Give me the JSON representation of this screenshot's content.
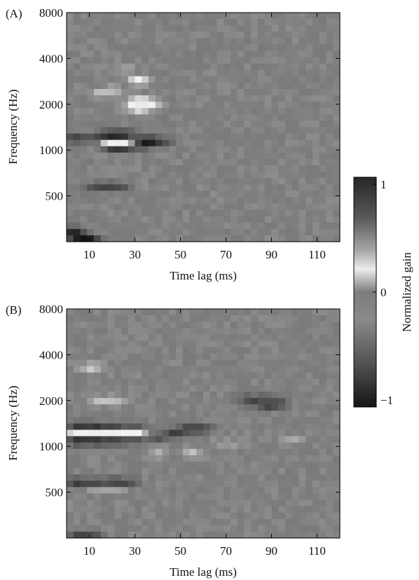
{
  "chart_data": [
    {
      "type": "heatmap",
      "panel_label": "(A)",
      "xlabel": "Time lag (ms)",
      "ylabel": "Frequency (Hz)",
      "xlim": [
        0,
        120
      ],
      "x_ticks": [
        10,
        30,
        50,
        70,
        90,
        110
      ],
      "y_scale": "log",
      "ylim": [
        250,
        8000
      ],
      "y_ticks": [
        500,
        1000,
        2000,
        4000,
        8000
      ],
      "grid": false,
      "values": [
        {
          "t": 3,
          "f": 280,
          "v": 0.7
        },
        {
          "t": 6,
          "f": 265,
          "v": 0.55
        },
        {
          "t": 3,
          "f": 300,
          "v": 0.4
        },
        {
          "t": 9,
          "f": 260,
          "v": 0.45
        },
        {
          "t": 12,
          "f": 255,
          "v": 0.35
        },
        {
          "t": 4,
          "f": 1180,
          "v": 0.75
        },
        {
          "t": 13,
          "f": 1180,
          "v": 0.5
        },
        {
          "t": 18,
          "f": 1250,
          "v": 0.8
        },
        {
          "t": 22,
          "f": 1250,
          "v": 0.9
        },
        {
          "t": 26,
          "f": 1250,
          "v": 0.85
        },
        {
          "t": 19,
          "f": 1150,
          "v": -0.95
        },
        {
          "t": 23,
          "f": 1150,
          "v": -1.0
        },
        {
          "t": 27,
          "f": 1150,
          "v": -0.8
        },
        {
          "t": 20,
          "f": 1050,
          "v": 0.7
        },
        {
          "t": 25,
          "f": 1050,
          "v": 0.75
        },
        {
          "t": 33,
          "f": 1150,
          "v": 0.85
        },
        {
          "t": 38,
          "f": 1150,
          "v": 0.65
        },
        {
          "t": 43,
          "f": 1120,
          "v": 0.35
        },
        {
          "t": 33,
          "f": 1050,
          "v": 0.4
        },
        {
          "t": 32,
          "f": 2050,
          "v": -0.9
        },
        {
          "t": 32,
          "f": 1900,
          "v": -0.75
        },
        {
          "t": 36,
          "f": 2000,
          "v": -0.5
        },
        {
          "t": 32,
          "f": 2850,
          "v": -0.6
        },
        {
          "t": 11,
          "f": 560,
          "v": 0.3
        },
        {
          "t": 16,
          "f": 580,
          "v": 0.4
        },
        {
          "t": 21,
          "f": 580,
          "v": 0.35
        },
        {
          "t": 25,
          "f": 560,
          "v": 0.25
        },
        {
          "t": 20,
          "f": 2500,
          "v": -0.3
        },
        {
          "t": 14,
          "f": 2350,
          "v": -0.25
        },
        {
          "t": 25,
          "f": 3400,
          "v": -0.2
        }
      ]
    },
    {
      "type": "heatmap",
      "panel_label": "(B)",
      "xlabel": "Time lag (ms)",
      "ylabel": "Frequency (Hz)",
      "xlim": [
        0,
        120
      ],
      "x_ticks": [
        10,
        30,
        50,
        70,
        90,
        110
      ],
      "y_scale": "log",
      "ylim": [
        250,
        8000
      ],
      "y_ticks": [
        500,
        1000,
        2000,
        4000,
        8000
      ],
      "grid": false,
      "values": [
        {
          "t": 5,
          "f": 1350,
          "v": 0.85
        },
        {
          "t": 13,
          "f": 1350,
          "v": 0.9
        },
        {
          "t": 21,
          "f": 1350,
          "v": 0.8
        },
        {
          "t": 30,
          "f": 1350,
          "v": 0.6
        },
        {
          "t": 5,
          "f": 1250,
          "v": -0.9
        },
        {
          "t": 13,
          "f": 1250,
          "v": -1.0
        },
        {
          "t": 21,
          "f": 1250,
          "v": -1.0
        },
        {
          "t": 30,
          "f": 1250,
          "v": -0.75
        },
        {
          "t": 5,
          "f": 1080,
          "v": 0.85
        },
        {
          "t": 13,
          "f": 1080,
          "v": 0.8
        },
        {
          "t": 21,
          "f": 1080,
          "v": 0.75
        },
        {
          "t": 30,
          "f": 1100,
          "v": 0.5
        },
        {
          "t": 40,
          "f": 1150,
          "v": 0.55
        },
        {
          "t": 48,
          "f": 1230,
          "v": 0.6
        },
        {
          "t": 54,
          "f": 1300,
          "v": 0.65
        },
        {
          "t": 60,
          "f": 1300,
          "v": 0.5
        },
        {
          "t": 5,
          "f": 580,
          "v": 0.7
        },
        {
          "t": 13,
          "f": 580,
          "v": 0.75
        },
        {
          "t": 21,
          "f": 580,
          "v": 0.7
        },
        {
          "t": 28,
          "f": 580,
          "v": 0.5
        },
        {
          "t": 13,
          "f": 540,
          "v": -0.35
        },
        {
          "t": 21,
          "f": 540,
          "v": -0.3
        },
        {
          "t": 82,
          "f": 1950,
          "v": 0.45
        },
        {
          "t": 88,
          "f": 1850,
          "v": 0.55
        },
        {
          "t": 94,
          "f": 1900,
          "v": 0.45
        },
        {
          "t": 88,
          "f": 2100,
          "v": 0.35
        },
        {
          "t": 78,
          "f": 2100,
          "v": 0.25
        },
        {
          "t": 11,
          "f": 3300,
          "v": -0.45
        },
        {
          "t": 15,
          "f": 2000,
          "v": -0.35
        },
        {
          "t": 22,
          "f": 2000,
          "v": -0.3
        },
        {
          "t": 5,
          "f": 260,
          "v": 0.5
        },
        {
          "t": 12,
          "f": 258,
          "v": 0.4
        },
        {
          "t": 40,
          "f": 900,
          "v": -0.25
        },
        {
          "t": 55,
          "f": 900,
          "v": -0.3
        },
        {
          "t": 70,
          "f": 1050,
          "v": -0.2
        },
        {
          "t": 100,
          "f": 1100,
          "v": -0.2
        }
      ]
    }
  ],
  "colorbar": {
    "label": "Normalized gain",
    "ticks": [
      {
        "value": 1,
        "label": "1"
      },
      {
        "value": 0,
        "label": "0"
      },
      {
        "value": -1,
        "label": "−1"
      }
    ],
    "range": [
      -1,
      1
    ]
  }
}
